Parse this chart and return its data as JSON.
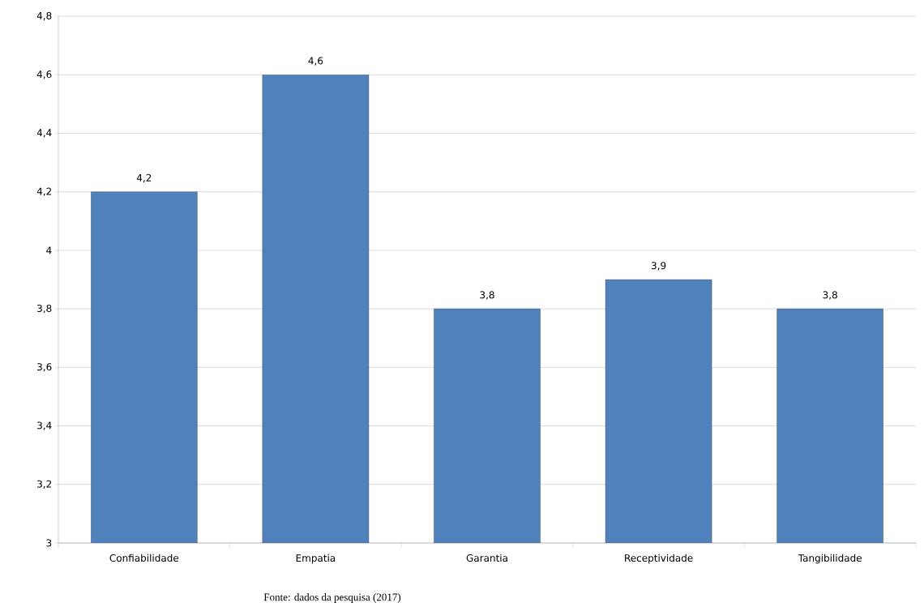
{
  "chart_data": {
    "type": "bar",
    "categories": [
      "Confiabilidade",
      "Empatia",
      "Garantia",
      "Receptividade",
      "Tangibilidade"
    ],
    "values": [
      4.2,
      4.6,
      3.8,
      3.9,
      3.8
    ],
    "value_labels": [
      "4,2",
      "4,6",
      "3,8",
      "3,9",
      "3,8"
    ],
    "color": "#4f81bd",
    "ylim": [
      3,
      4.8
    ],
    "yticks": [
      3,
      {
        "value": 3.2,
        "label": "3,2"
      },
      {
        "value": 3.4,
        "label": "3,4"
      },
      {
        "value": 3.6,
        "label": "3,6"
      },
      {
        "value": 3.8,
        "label": "3,8"
      },
      4,
      {
        "value": 4.2,
        "label": "4,2"
      },
      {
        "value": 4.4,
        "label": "4,4"
      },
      {
        "value": 4.6,
        "label": "4,6"
      },
      {
        "value": 4.8,
        "label": "4,8"
      }
    ],
    "grid": "y",
    "annotations": [
      "Fonte: dados da pesquisa (2017)"
    ]
  }
}
